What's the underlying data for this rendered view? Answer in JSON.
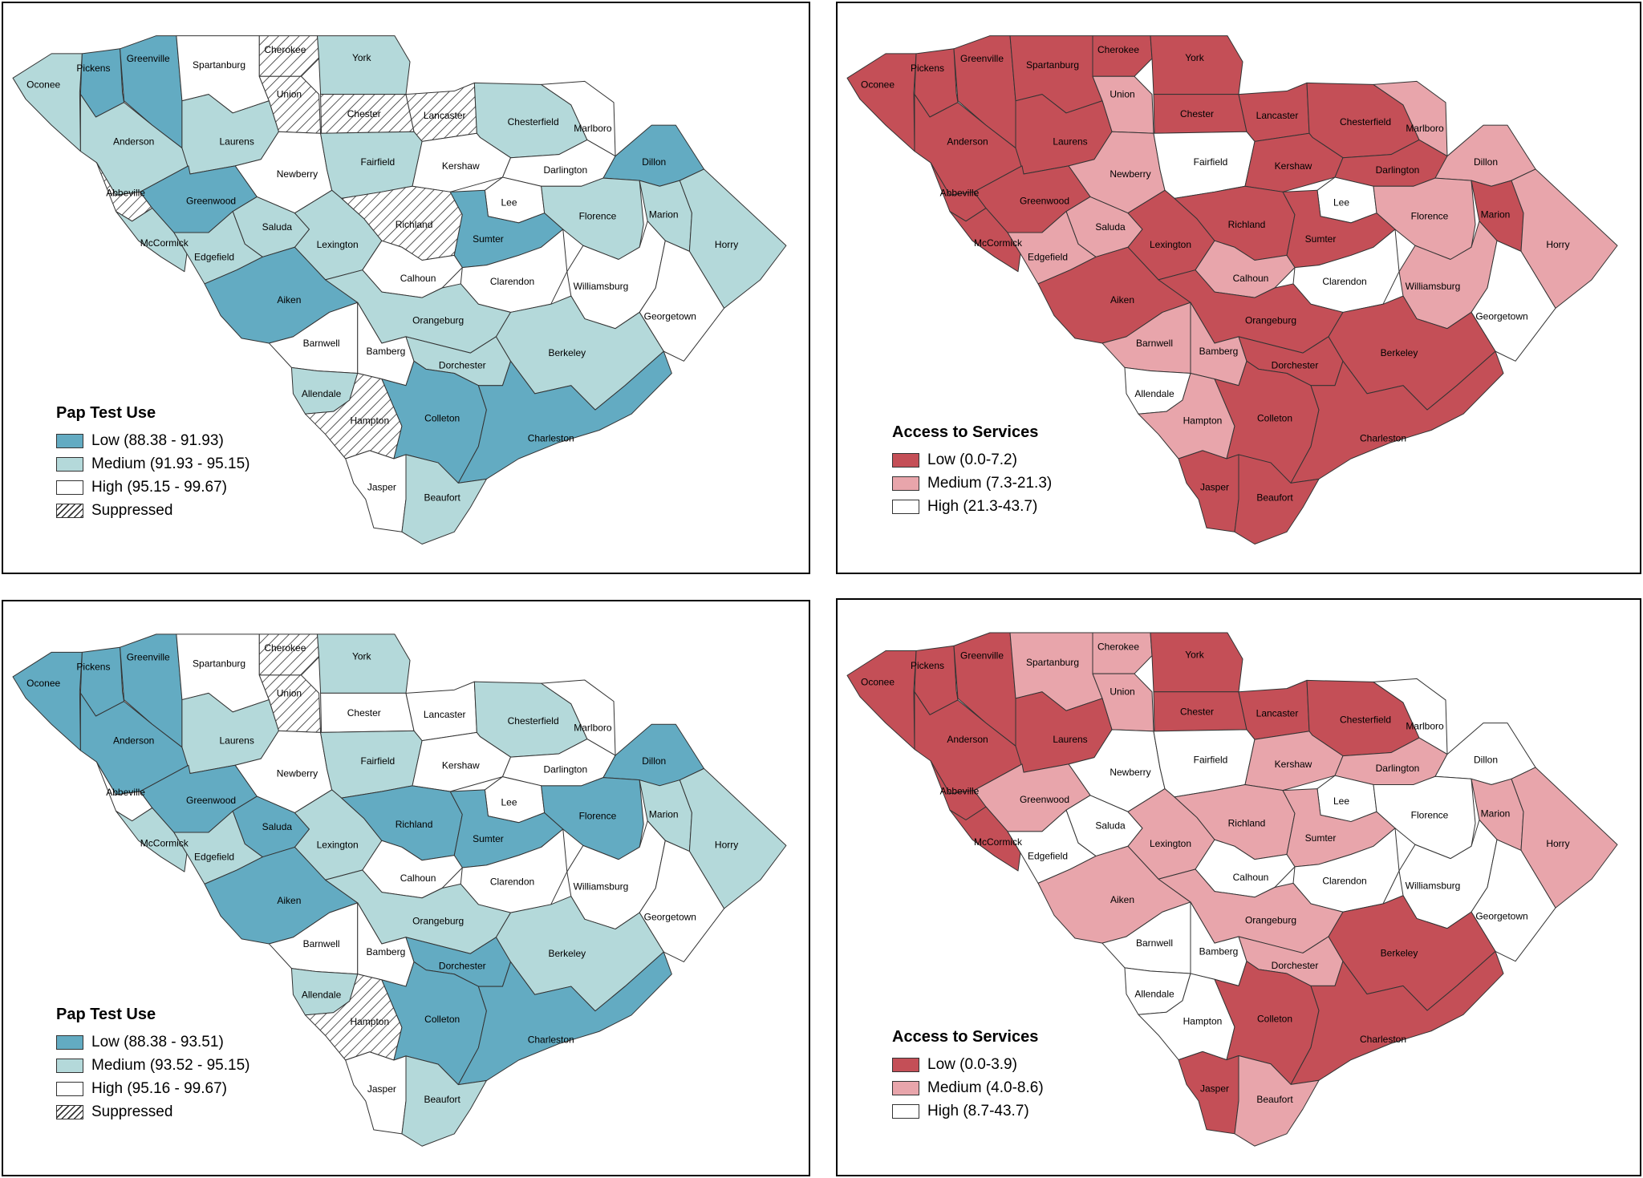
{
  "colors": {
    "pap_low": "#63abc2",
    "pap_medium": "#b4d9da",
    "pap_high": "#ffffff",
    "access_low": "#c44f57",
    "access_medium": "#e8a5ab",
    "access_high": "#ffffff",
    "outline": "#333333"
  },
  "panels": [
    {
      "id": "pap-1",
      "theme": "pap",
      "legend": {
        "title": "Pap Test Use",
        "items": [
          {
            "class": "low",
            "label": "Low (88.38 - 91.93)"
          },
          {
            "class": "medium",
            "label": "Medium (91.93 - 95.15)"
          },
          {
            "class": "high",
            "label": "High (95.15 - 99.67)"
          },
          {
            "class": "suppressed",
            "label": "Suppressed"
          }
        ]
      },
      "counties": {
        "Oconee": "medium",
        "Pickens": "low",
        "Greenville": "low",
        "Spartanburg": "high",
        "Cherokee": "suppressed",
        "York": "medium",
        "Union": "suppressed",
        "Chester": "suppressed",
        "Lancaster": "suppressed",
        "Chesterfield": "medium",
        "Marlboro": "high",
        "Anderson": "medium",
        "Laurens": "medium",
        "Newberry": "high",
        "Fairfield": "medium",
        "Kershaw": "high",
        "Darlington": "high",
        "Dillon": "low",
        "Abbeville": "suppressed",
        "Greenwood": "low",
        "Saluda": "medium",
        "Lexington": "medium",
        "Richland": "suppressed",
        "Lee": "high",
        "Sumter": "low",
        "Florence": "medium",
        "Marion": "medium",
        "Horry": "medium",
        "McCormick": "medium",
        "Edgefield": "medium",
        "Aiken": "low",
        "Calhoun": "high",
        "Clarendon": "high",
        "Williamsburg": "high",
        "Georgetown": "high",
        "Orangeburg": "medium",
        "Barnwell": "high",
        "Bamberg": "high",
        "Dorchester": "medium",
        "Berkeley": "medium",
        "Allendale": "medium",
        "Hampton": "suppressed",
        "Colleton": "low",
        "Charleston": "low",
        "Jasper": "high",
        "Beaufort": "medium"
      }
    },
    {
      "id": "access-1",
      "theme": "access",
      "legend": {
        "title": "Access to Services",
        "items": [
          {
            "class": "low",
            "label": "Low (0.0-7.2)"
          },
          {
            "class": "medium",
            "label": "Medium (7.3-21.3)"
          },
          {
            "class": "high",
            "label": "High (21.3-43.7)"
          }
        ]
      },
      "counties": {
        "Oconee": "low",
        "Pickens": "low",
        "Greenville": "low",
        "Spartanburg": "low",
        "Cherokee": "low",
        "York": "low",
        "Union": "medium",
        "Chester": "low",
        "Lancaster": "low",
        "Chesterfield": "low",
        "Marlboro": "medium",
        "Anderson": "low",
        "Laurens": "low",
        "Newberry": "medium",
        "Fairfield": "high",
        "Kershaw": "low",
        "Darlington": "low",
        "Dillon": "medium",
        "Abbeville": "low",
        "Greenwood": "low",
        "Saluda": "medium",
        "Lexington": "low",
        "Richland": "low",
        "Lee": "high",
        "Sumter": "low",
        "Florence": "medium",
        "Marion": "low",
        "Horry": "medium",
        "McCormick": "low",
        "Edgefield": "medium",
        "Aiken": "low",
        "Calhoun": "medium",
        "Clarendon": "high",
        "Williamsburg": "medium",
        "Georgetown": "high",
        "Orangeburg": "low",
        "Barnwell": "medium",
        "Bamberg": "medium",
        "Dorchester": "low",
        "Berkeley": "low",
        "Allendale": "high",
        "Hampton": "medium",
        "Colleton": "low",
        "Charleston": "low",
        "Jasper": "low",
        "Beaufort": "low"
      }
    },
    {
      "id": "pap-2",
      "theme": "pap",
      "legend": {
        "title": "Pap Test Use",
        "items": [
          {
            "class": "low",
            "label": "Low (88.38 - 93.51)"
          },
          {
            "class": "medium",
            "label": "Medium (93.52 - 95.15)"
          },
          {
            "class": "high",
            "label": "High (95.16 - 99.67)"
          },
          {
            "class": "suppressed",
            "label": "Suppressed"
          }
        ]
      },
      "counties": {
        "Oconee": "low",
        "Pickens": "low",
        "Greenville": "low",
        "Spartanburg": "high",
        "Cherokee": "suppressed",
        "York": "medium",
        "Union": "suppressed",
        "Chester": "high",
        "Lancaster": "high",
        "Chesterfield": "medium",
        "Marlboro": "high",
        "Anderson": "low",
        "Laurens": "medium",
        "Newberry": "high",
        "Fairfield": "medium",
        "Kershaw": "high",
        "Darlington": "high",
        "Dillon": "low",
        "Abbeville": "high",
        "Greenwood": "low",
        "Saluda": "low",
        "Lexington": "medium",
        "Richland": "low",
        "Lee": "high",
        "Sumter": "low",
        "Florence": "low",
        "Marion": "medium",
        "Horry": "medium",
        "McCormick": "medium",
        "Edgefield": "medium",
        "Aiken": "low",
        "Calhoun": "high",
        "Clarendon": "high",
        "Williamsburg": "high",
        "Georgetown": "high",
        "Orangeburg": "medium",
        "Barnwell": "high",
        "Bamberg": "high",
        "Dorchester": "low",
        "Berkeley": "medium",
        "Allendale": "medium",
        "Hampton": "suppressed",
        "Colleton": "low",
        "Charleston": "low",
        "Jasper": "high",
        "Beaufort": "medium"
      }
    },
    {
      "id": "access-2",
      "theme": "access",
      "legend": {
        "title": "Access to Services",
        "items": [
          {
            "class": "low",
            "label": "Low (0.0-3.9)"
          },
          {
            "class": "medium",
            "label": "Medium (4.0-8.6)"
          },
          {
            "class": "high",
            "label": "High (8.7-43.7)"
          }
        ]
      },
      "counties": {
        "Oconee": "low",
        "Pickens": "low",
        "Greenville": "low",
        "Spartanburg": "medium",
        "Cherokee": "medium",
        "York": "low",
        "Union": "medium",
        "Chester": "low",
        "Lancaster": "low",
        "Chesterfield": "low",
        "Marlboro": "high",
        "Anderson": "low",
        "Laurens": "low",
        "Newberry": "high",
        "Fairfield": "high",
        "Kershaw": "medium",
        "Darlington": "medium",
        "Dillon": "high",
        "Abbeville": "low",
        "Greenwood": "medium",
        "Saluda": "high",
        "Lexington": "medium",
        "Richland": "medium",
        "Lee": "high",
        "Sumter": "medium",
        "Florence": "high",
        "Marion": "medium",
        "Horry": "medium",
        "McCormick": "low",
        "Edgefield": "high",
        "Aiken": "medium",
        "Calhoun": "high",
        "Clarendon": "high",
        "Williamsburg": "high",
        "Georgetown": "high",
        "Orangeburg": "medium",
        "Barnwell": "high",
        "Bamberg": "high",
        "Dorchester": "medium",
        "Berkeley": "low",
        "Allendale": "high",
        "Hampton": "high",
        "Colleton": "low",
        "Charleston": "low",
        "Jasper": "low",
        "Beaufort": "medium"
      }
    }
  ]
}
